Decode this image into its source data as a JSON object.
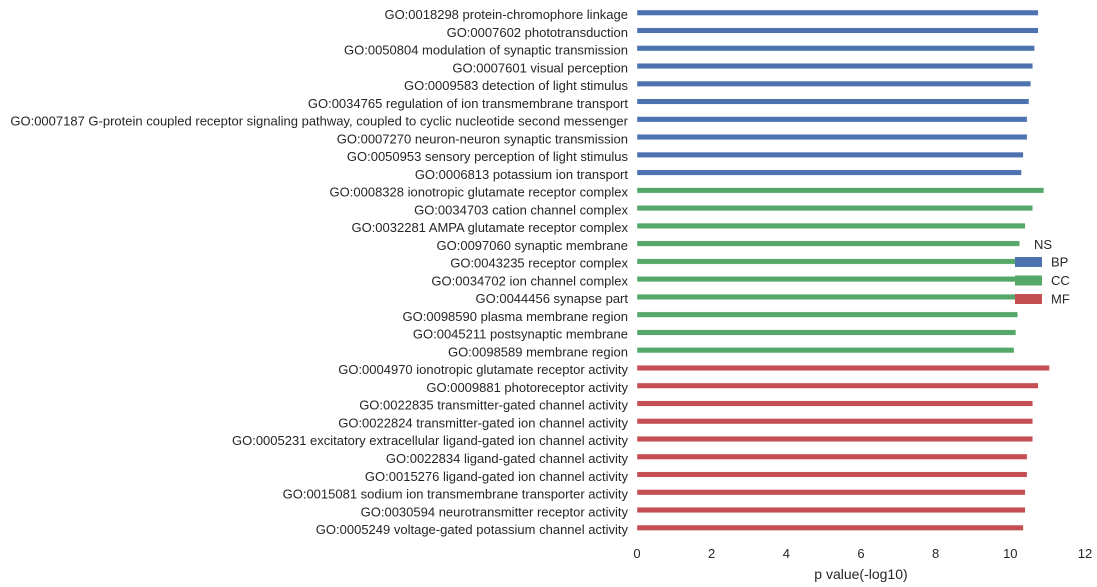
{
  "chart_data": {
    "type": "bar",
    "orientation": "horizontal",
    "xlabel": "p value(-log10)",
    "xlim": [
      0,
      12
    ],
    "xticks": [
      0,
      2,
      4,
      6,
      8,
      10,
      12
    ],
    "grid": false,
    "legend": {
      "title": "NS",
      "placement": "right",
      "entries": [
        {
          "name": "BP",
          "color": "#4c72b0"
        },
        {
          "name": "CC",
          "color": "#55a868"
        },
        {
          "name": "MF",
          "color": "#c44e52"
        }
      ]
    },
    "bars": [
      {
        "label": "GO:0018298 protein-chromophore linkage",
        "value": 10.75,
        "series": "BP"
      },
      {
        "label": "GO:0007602 phototransduction",
        "value": 10.75,
        "series": "BP"
      },
      {
        "label": "GO:0050804 modulation of synaptic transmission",
        "value": 10.65,
        "series": "BP"
      },
      {
        "label": "GO:0007601 visual perception",
        "value": 10.6,
        "series": "BP"
      },
      {
        "label": "GO:0009583 detection of light stimulus",
        "value": 10.55,
        "series": "BP"
      },
      {
        "label": "GO:0034765 regulation of ion transmembrane transport",
        "value": 10.5,
        "series": "BP"
      },
      {
        "label": "GO:0007187 G-protein coupled receptor signaling pathway, coupled to cyclic nucleotide second messenger",
        "value": 10.45,
        "series": "BP"
      },
      {
        "label": "GO:0007270 neuron-neuron synaptic transmission",
        "value": 10.45,
        "series": "BP"
      },
      {
        "label": "GO:0050953 sensory perception of light stimulus",
        "value": 10.35,
        "series": "BP"
      },
      {
        "label": "GO:0006813 potassium ion transport",
        "value": 10.3,
        "series": "BP"
      },
      {
        "label": "GO:0008328 ionotropic glutamate receptor complex",
        "value": 10.9,
        "series": "CC"
      },
      {
        "label": "GO:0034703 cation channel complex",
        "value": 10.6,
        "series": "CC"
      },
      {
        "label": "GO:0032281 AMPA glutamate receptor complex",
        "value": 10.4,
        "series": "CC"
      },
      {
        "label": "GO:0097060 synaptic membrane",
        "value": 10.25,
        "series": "CC"
      },
      {
        "label": "GO:0043235 receptor complex",
        "value": 10.3,
        "series": "CC"
      },
      {
        "label": "GO:0034702 ion channel complex",
        "value": 10.25,
        "series": "CC"
      },
      {
        "label": "GO:0044456 synapse part",
        "value": 10.2,
        "series": "CC"
      },
      {
        "label": "GO:0098590 plasma membrane region",
        "value": 10.2,
        "series": "CC"
      },
      {
        "label": "GO:0045211 postsynaptic membrane",
        "value": 10.15,
        "series": "CC"
      },
      {
        "label": "GO:0098589 membrane region",
        "value": 10.1,
        "series": "CC"
      },
      {
        "label": "GO:0004970 ionotropic glutamate receptor activity",
        "value": 11.05,
        "series": "MF"
      },
      {
        "label": "GO:0009881 photoreceptor activity",
        "value": 10.75,
        "series": "MF"
      },
      {
        "label": "GO:0022835 transmitter-gated channel activity",
        "value": 10.6,
        "series": "MF"
      },
      {
        "label": "GO:0022824 transmitter-gated ion channel activity",
        "value": 10.6,
        "series": "MF"
      },
      {
        "label": "GO:0005231 excitatory extracellular ligand-gated ion channel activity",
        "value": 10.6,
        "series": "MF"
      },
      {
        "label": "GO:0022834 ligand-gated channel activity",
        "value": 10.45,
        "series": "MF"
      },
      {
        "label": "GO:0015276 ligand-gated ion channel activity",
        "value": 10.45,
        "series": "MF"
      },
      {
        "label": "GO:0015081 sodium ion transmembrane transporter activity",
        "value": 10.4,
        "series": "MF"
      },
      {
        "label": "GO:0030594 neurotransmitter receptor activity",
        "value": 10.4,
        "series": "MF"
      },
      {
        "label": "GO:0005249 voltage-gated potassium channel activity",
        "value": 10.35,
        "series": "MF"
      }
    ]
  }
}
